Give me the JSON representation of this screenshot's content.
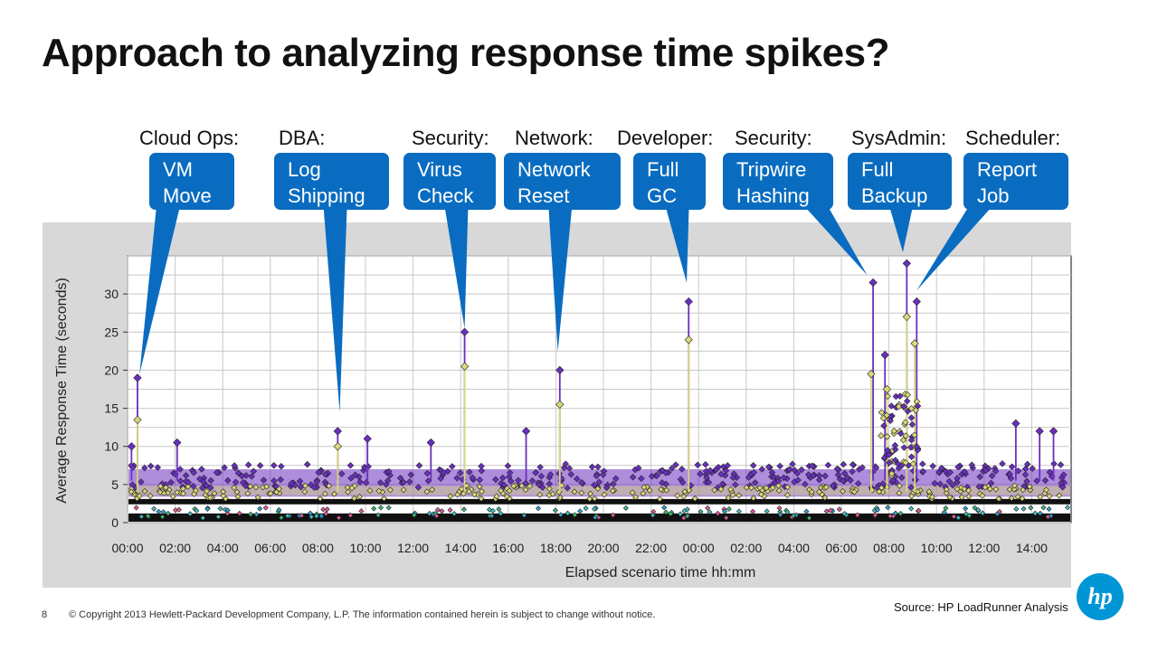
{
  "slide": {
    "title": "Approach to analyzing response time spikes?",
    "page_number": "8",
    "copyright": "© Copyright 2013 Hewlett-Packard Development Company, L.P.  The information contained herein is subject to change without notice.",
    "source": "Source: HP LoadRunner Analysis",
    "logo_text": "hp"
  },
  "colors": {
    "callout_blue": "#0a6cc0",
    "chart_frame": "#d8d8d8",
    "purple_series": "#6a2fc0",
    "yellow_series": "#d8d87a"
  },
  "callouts": [
    {
      "role": "Cloud Ops:",
      "line1": "VM",
      "line2": "Move",
      "x": "00:30",
      "y": 19
    },
    {
      "role": "DBA:",
      "line1": "Log",
      "line2": "Shipping",
      "x": "08:55",
      "y": 14
    },
    {
      "role": "Security:",
      "line1": "Virus",
      "line2": "Check",
      "x": "14:10",
      "y": 25
    },
    {
      "role": "Network:",
      "line1": "Network",
      "line2": "Reset",
      "x": "18:05",
      "y": 22
    },
    {
      "role": "Developer:",
      "line1": "Full",
      "line2": "GC",
      "x": "23:30",
      "y": 31
    },
    {
      "role": "Security:",
      "line1": "Tripwire",
      "line2": "Hashing",
      "x": "07:05",
      "y": 32
    },
    {
      "role": "SysAdmin:",
      "line1": "Full",
      "line2": "Backup",
      "x": "08:35",
      "y": 35
    },
    {
      "role": "Scheduler:",
      "line1": "Report",
      "line2": "Job",
      "x": "09:10",
      "y": 30
    }
  ],
  "chart_data": {
    "type": "scatter",
    "title": "",
    "xlabel": "Elapsed scenario time hh:mm",
    "ylabel": "Average Response Time (seconds)",
    "ylim": [
      0,
      35
    ],
    "y_ticks": [
      "0",
      "5",
      "10",
      "15",
      "20",
      "25",
      "30"
    ],
    "x_ticks": [
      "00:00",
      "02:00",
      "04:00",
      "06:00",
      "08:00",
      "10:00",
      "12:00",
      "14:00",
      "16:00",
      "18:00",
      "20:00",
      "22:00",
      "00:00",
      "02:00",
      "04:00",
      "06:00",
      "08:00",
      "10:00",
      "12:00",
      "14:00"
    ],
    "grid": true,
    "series": [
      {
        "color": "#6a2fc0",
        "baseline": 5.5,
        "spikes": [
          {
            "x": "00:25",
            "y": 19
          },
          {
            "x": "02:05",
            "y": 10.5
          },
          {
            "x": "08:50",
            "y": 12
          },
          {
            "x": "10:05",
            "y": 11
          },
          {
            "x": "12:45",
            "y": 10.5
          },
          {
            "x": "14:10",
            "y": 25
          },
          {
            "x": "16:45",
            "y": 12
          },
          {
            "x": "18:10",
            "y": 20
          },
          {
            "x": "23:35",
            "y": 29
          },
          {
            "x": "00:10",
            "y": 10
          },
          {
            "x": "07:20",
            "y": 31.5
          },
          {
            "x": "07:50",
            "y": 22
          },
          {
            "x": "08:45",
            "y": 34
          },
          {
            "x": "09:10",
            "y": 29
          },
          {
            "x": "13:20",
            "y": 13
          },
          {
            "x": "14:20",
            "y": 12
          },
          {
            "x": "14:55",
            "y": 12
          }
        ]
      },
      {
        "color": "#d8d87a",
        "baseline": 4,
        "spikes": [
          {
            "x": "00:25",
            "y": 13.5
          },
          {
            "x": "08:50",
            "y": 10
          },
          {
            "x": "14:10",
            "y": 20.5
          },
          {
            "x": "18:10",
            "y": 15.5
          },
          {
            "x": "23:35",
            "y": 24
          },
          {
            "x": "07:15",
            "y": 19.5
          },
          {
            "x": "07:55",
            "y": 17.5
          },
          {
            "x": "08:45",
            "y": 27
          },
          {
            "x": "09:05",
            "y": 23.5
          }
        ]
      },
      {
        "color": "#111111",
        "baseline": 0,
        "spikes": []
      }
    ],
    "annotations": [
      "VM Move",
      "Log Shipping",
      "Virus Check",
      "Network Reset",
      "Full GC",
      "Tripwire Hashing",
      "Full Backup",
      "Report Job"
    ]
  }
}
